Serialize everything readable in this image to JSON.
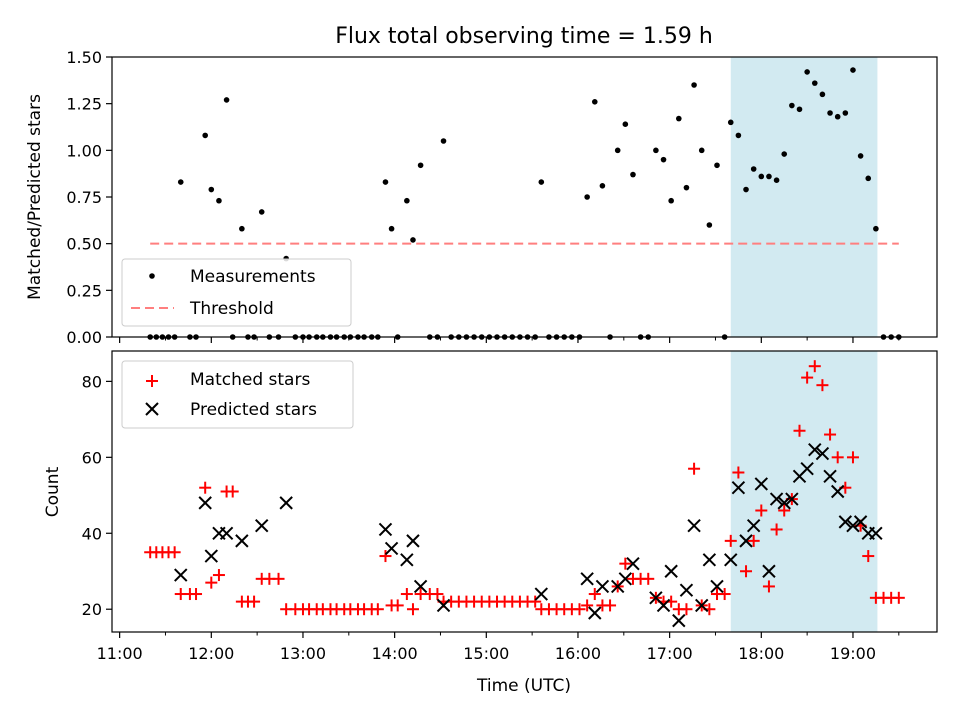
{
  "chart_data": [
    {
      "type": "scatter",
      "title": "Flux total observing time = 1.59 h",
      "ylabel": "Matched/Predicted stars",
      "xlabel": "",
      "xlim": [
        "10:55",
        "19:55"
      ],
      "ylim": [
        0,
        1.5
      ],
      "yticks": [
        "0.00",
        "0.25",
        "0.50",
        "0.75",
        "1.00",
        "1.25",
        "1.50"
      ],
      "highlight_span": {
        "from": "17:40",
        "to": "19:16",
        "color": "#add8e6"
      },
      "legend": {
        "position": "lower-left",
        "entries": [
          "Measurements",
          "Threshold"
        ]
      },
      "series": [
        {
          "name": "Measurements",
          "color": "#000000",
          "marker": "dot",
          "points": [
            [
              "11:20",
              0
            ],
            [
              "11:24",
              0
            ],
            [
              "11:28",
              0
            ],
            [
              "11:32",
              0
            ],
            [
              "11:36",
              0
            ],
            [
              "11:40",
              0.83
            ],
            [
              "11:46",
              0
            ],
            [
              "11:50",
              0
            ],
            [
              "11:56",
              1.08
            ],
            [
              "12:00",
              0.79
            ],
            [
              "12:05",
              0.73
            ],
            [
              "12:10",
              1.27
            ],
            [
              "12:14",
              0
            ],
            [
              "12:20",
              0.58
            ],
            [
              "12:24",
              0
            ],
            [
              "12:28",
              0
            ],
            [
              "12:33",
              0.67
            ],
            [
              "12:38",
              0
            ],
            [
              "12:44",
              0
            ],
            [
              "12:49",
              0.42
            ],
            [
              "12:55",
              0
            ],
            [
              "13:00",
              0
            ],
            [
              "13:04",
              0
            ],
            [
              "13:09",
              0
            ],
            [
              "13:13",
              0
            ],
            [
              "13:18",
              0
            ],
            [
              "13:22",
              0
            ],
            [
              "13:27",
              0
            ],
            [
              "13:31",
              0
            ],
            [
              "13:36",
              0
            ],
            [
              "13:40",
              0
            ],
            [
              "13:45",
              0
            ],
            [
              "13:49",
              0
            ],
            [
              "13:54",
              0.83
            ],
            [
              "13:58",
              0.58
            ],
            [
              "14:02",
              0
            ],
            [
              "14:08",
              0.73
            ],
            [
              "14:12",
              0.52
            ],
            [
              "14:17",
              0.92
            ],
            [
              "14:23",
              0
            ],
            [
              "14:28",
              0
            ],
            [
              "14:32",
              1.05
            ],
            [
              "14:37",
              0
            ],
            [
              "14:42",
              0
            ],
            [
              "14:47",
              0
            ],
            [
              "14:52",
              0
            ],
            [
              "14:57",
              0
            ],
            [
              "15:02",
              0
            ],
            [
              "15:07",
              0
            ],
            [
              "15:12",
              0
            ],
            [
              "15:17",
              0
            ],
            [
              "15:22",
              0
            ],
            [
              "15:27",
              0
            ],
            [
              "15:32",
              0
            ],
            [
              "15:36",
              0.83
            ],
            [
              "15:41",
              0
            ],
            [
              "15:46",
              0
            ],
            [
              "15:51",
              0
            ],
            [
              "15:56",
              0
            ],
            [
              "16:01",
              0
            ],
            [
              "16:06",
              0.75
            ],
            [
              "16:11",
              1.26
            ],
            [
              "16:16",
              0.81
            ],
            [
              "16:21",
              0
            ],
            [
              "16:26",
              1.0
            ],
            [
              "16:31",
              1.14
            ],
            [
              "16:36",
              0.87
            ],
            [
              "16:41",
              0
            ],
            [
              "16:46",
              0
            ],
            [
              "16:51",
              1.0
            ],
            [
              "16:56",
              0.95
            ],
            [
              "17:01",
              0.73
            ],
            [
              "17:06",
              1.17
            ],
            [
              "17:11",
              0.8
            ],
            [
              "17:16",
              1.35
            ],
            [
              "17:21",
              1.0
            ],
            [
              "17:26",
              0.6
            ],
            [
              "17:31",
              0.92
            ],
            [
              "17:36",
              0
            ],
            [
              "17:40",
              1.15
            ],
            [
              "17:45",
              1.08
            ],
            [
              "17:50",
              0.79
            ],
            [
              "17:55",
              0.9
            ],
            [
              "18:00",
              0.86
            ],
            [
              "18:05",
              0.86
            ],
            [
              "18:10",
              0.84
            ],
            [
              "18:15",
              0.98
            ],
            [
              "18:20",
              1.24
            ],
            [
              "18:25",
              1.22
            ],
            [
              "18:30",
              1.42
            ],
            [
              "18:35",
              1.36
            ],
            [
              "18:40",
              1.3
            ],
            [
              "18:45",
              1.2
            ],
            [
              "18:50",
              1.18
            ],
            [
              "18:55",
              1.2
            ],
            [
              "19:00",
              1.43
            ],
            [
              "19:05",
              0.97
            ],
            [
              "19:10",
              0.85
            ],
            [
              "19:15",
              0.58
            ],
            [
              "19:20",
              0
            ],
            [
              "19:25",
              0
            ],
            [
              "19:30",
              0
            ]
          ]
        },
        {
          "name": "Threshold",
          "color": "#ff7f7f",
          "style": "dashed",
          "points": [
            [
              "11:20",
              0.5
            ],
            [
              "19:30",
              0.5
            ]
          ]
        }
      ]
    },
    {
      "type": "scatter",
      "title": "",
      "ylabel": "Count",
      "xlabel": "Time (UTC)",
      "xlim": [
        "10:55",
        "19:55"
      ],
      "ylim": [
        14,
        88
      ],
      "yticks": [
        "20",
        "40",
        "60",
        "80"
      ],
      "xticks": [
        "11:00",
        "12:00",
        "13:00",
        "14:00",
        "15:00",
        "16:00",
        "17:00",
        "18:00",
        "19:00"
      ],
      "highlight_span": {
        "from": "17:40",
        "to": "19:16",
        "color": "#add8e6"
      },
      "legend": {
        "position": "top-left",
        "entries": [
          "Matched stars",
          "Predicted stars"
        ]
      },
      "series": [
        {
          "name": "Matched stars",
          "color": "#ff0000",
          "marker": "plus",
          "points": [
            [
              "11:20",
              35
            ],
            [
              "11:24",
              35
            ],
            [
              "11:28",
              35
            ],
            [
              "11:32",
              35
            ],
            [
              "11:36",
              35
            ],
            [
              "11:40",
              24
            ],
            [
              "11:46",
              24
            ],
            [
              "11:50",
              24
            ],
            [
              "11:56",
              52
            ],
            [
              "12:00",
              27
            ],
            [
              "12:05",
              29
            ],
            [
              "12:10",
              51
            ],
            [
              "12:14",
              51
            ],
            [
              "12:20",
              22
            ],
            [
              "12:24",
              22
            ],
            [
              "12:28",
              22
            ],
            [
              "12:33",
              28
            ],
            [
              "12:38",
              28
            ],
            [
              "12:44",
              28
            ],
            [
              "12:49",
              20
            ],
            [
              "12:55",
              20
            ],
            [
              "13:00",
              20
            ],
            [
              "13:04",
              20
            ],
            [
              "13:09",
              20
            ],
            [
              "13:13",
              20
            ],
            [
              "13:18",
              20
            ],
            [
              "13:22",
              20
            ],
            [
              "13:27",
              20
            ],
            [
              "13:31",
              20
            ],
            [
              "13:36",
              20
            ],
            [
              "13:40",
              20
            ],
            [
              "13:45",
              20
            ],
            [
              "13:49",
              20
            ],
            [
              "13:54",
              34
            ],
            [
              "13:58",
              21
            ],
            [
              "14:02",
              21
            ],
            [
              "14:08",
              24
            ],
            [
              "14:12",
              20
            ],
            [
              "14:17",
              24
            ],
            [
              "14:23",
              24
            ],
            [
              "14:28",
              24
            ],
            [
              "14:32",
              22
            ],
            [
              "14:37",
              22
            ],
            [
              "14:42",
              22
            ],
            [
              "14:47",
              22
            ],
            [
              "14:52",
              22
            ],
            [
              "14:57",
              22
            ],
            [
              "15:02",
              22
            ],
            [
              "15:07",
              22
            ],
            [
              "15:12",
              22
            ],
            [
              "15:17",
              22
            ],
            [
              "15:22",
              22
            ],
            [
              "15:27",
              22
            ],
            [
              "15:32",
              22
            ],
            [
              "15:36",
              20
            ],
            [
              "15:41",
              20
            ],
            [
              "15:46",
              20
            ],
            [
              "15:51",
              20
            ],
            [
              "15:56",
              20
            ],
            [
              "16:01",
              20
            ],
            [
              "16:06",
              21
            ],
            [
              "16:11",
              24
            ],
            [
              "16:16",
              21
            ],
            [
              "16:21",
              21
            ],
            [
              "16:26",
              26
            ],
            [
              "16:31",
              32
            ],
            [
              "16:36",
              28
            ],
            [
              "16:41",
              28
            ],
            [
              "16:46",
              28
            ],
            [
              "16:51",
              23
            ],
            [
              "16:56",
              22
            ],
            [
              "17:01",
              22
            ],
            [
              "17:06",
              20
            ],
            [
              "17:11",
              20
            ],
            [
              "17:16",
              57
            ],
            [
              "17:21",
              21
            ],
            [
              "17:26",
              20
            ],
            [
              "17:31",
              24
            ],
            [
              "17:36",
              24
            ],
            [
              "17:40",
              38
            ],
            [
              "17:45",
              56
            ],
            [
              "17:50",
              30
            ],
            [
              "17:55",
              38
            ],
            [
              "18:00",
              46
            ],
            [
              "18:05",
              26
            ],
            [
              "18:10",
              41
            ],
            [
              "18:15",
              46
            ],
            [
              "18:20",
              49
            ],
            [
              "18:25",
              67
            ],
            [
              "18:30",
              81
            ],
            [
              "18:35",
              84
            ],
            [
              "18:40",
              79
            ],
            [
              "18:45",
              66
            ],
            [
              "18:50",
              60
            ],
            [
              "18:55",
              52
            ],
            [
              "19:00",
              60
            ],
            [
              "19:05",
              42
            ],
            [
              "19:10",
              34
            ],
            [
              "19:15",
              23
            ],
            [
              "19:20",
              23
            ],
            [
              "19:25",
              23
            ],
            [
              "19:30",
              23
            ]
          ]
        },
        {
          "name": "Predicted stars",
          "color": "#000000",
          "marker": "x",
          "points": [
            [
              "11:40",
              29
            ],
            [
              "11:56",
              48
            ],
            [
              "12:00",
              34
            ],
            [
              "12:05",
              40
            ],
            [
              "12:10",
              40
            ],
            [
              "12:20",
              38
            ],
            [
              "12:33",
              42
            ],
            [
              "12:49",
              48
            ],
            [
              "13:54",
              41
            ],
            [
              "13:58",
              36
            ],
            [
              "14:08",
              33
            ],
            [
              "14:12",
              38
            ],
            [
              "14:17",
              26
            ],
            [
              "14:32",
              21
            ],
            [
              "15:36",
              24
            ],
            [
              "16:06",
              28
            ],
            [
              "16:11",
              19
            ],
            [
              "16:16",
              26
            ],
            [
              "16:26",
              26
            ],
            [
              "16:31",
              28
            ],
            [
              "16:36",
              32
            ],
            [
              "16:51",
              23
            ],
            [
              "16:56",
              21
            ],
            [
              "17:01",
              30
            ],
            [
              "17:06",
              17
            ],
            [
              "17:11",
              25
            ],
            [
              "17:16",
              42
            ],
            [
              "17:21",
              21
            ],
            [
              "17:26",
              33
            ],
            [
              "17:31",
              26
            ],
            [
              "17:40",
              33
            ],
            [
              "17:45",
              52
            ],
            [
              "17:50",
              38
            ],
            [
              "17:55",
              42
            ],
            [
              "18:00",
              53
            ],
            [
              "18:05",
              30
            ],
            [
              "18:10",
              49
            ],
            [
              "18:15",
              48
            ],
            [
              "18:20",
              49
            ],
            [
              "18:25",
              55
            ],
            [
              "18:30",
              57
            ],
            [
              "18:35",
              62
            ],
            [
              "18:40",
              61
            ],
            [
              "18:45",
              55
            ],
            [
              "18:50",
              51
            ],
            [
              "18:55",
              43
            ],
            [
              "19:00",
              42
            ],
            [
              "19:05",
              43
            ],
            [
              "19:10",
              40
            ],
            [
              "19:15",
              40
            ]
          ]
        }
      ]
    }
  ]
}
